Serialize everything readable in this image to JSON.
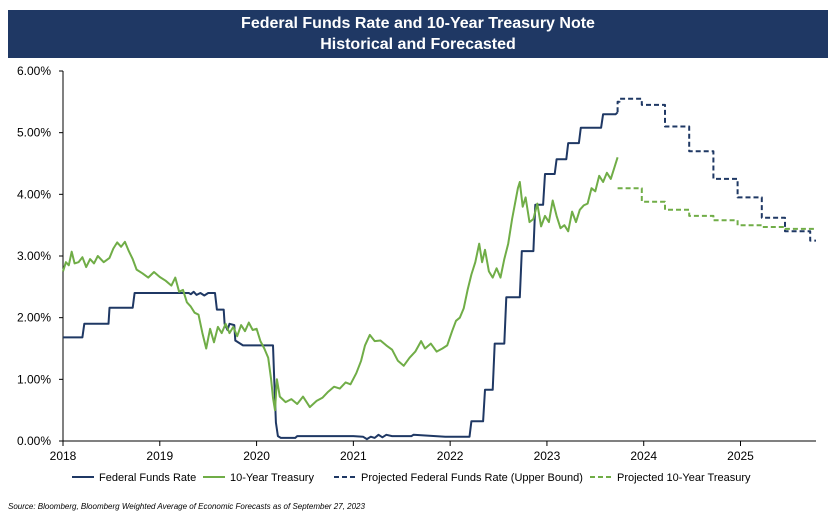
{
  "chart_data": {
    "type": "line",
    "title": "Federal Funds Rate and 10-Year Treasury Note",
    "subtitle": "Historical and Forecasted",
    "xlabel": "",
    "ylabel": "",
    "xlim": [
      2018,
      2025.78
    ],
    "ylim": [
      0,
      6
    ],
    "x_ticks": [
      "2018",
      "2019",
      "2020",
      "2021",
      "2022",
      "2023",
      "2024",
      "2025"
    ],
    "y_ticks": [
      "0.00%",
      "1.00%",
      "2.00%",
      "3.00%",
      "4.00%",
      "5.00%",
      "6.00%"
    ],
    "grid": false,
    "legend_position": "bottom",
    "colors": {
      "fed_funds": "#1f3864",
      "treasury": "#70ad47",
      "title_bg": "#1f3864"
    },
    "series": [
      {
        "name": "Federal Funds Rate",
        "style": "solid",
        "color": "#1f3864",
        "points": [
          [
            2018.0,
            1.68
          ],
          [
            2018.2,
            1.68
          ],
          [
            2018.22,
            1.9
          ],
          [
            2018.47,
            1.9
          ],
          [
            2018.48,
            2.16
          ],
          [
            2018.72,
            2.16
          ],
          [
            2018.74,
            2.4
          ],
          [
            2019.3,
            2.4
          ],
          [
            2019.32,
            2.38
          ],
          [
            2019.35,
            2.42
          ],
          [
            2019.38,
            2.37
          ],
          [
            2019.42,
            2.4
          ],
          [
            2019.46,
            2.36
          ],
          [
            2019.5,
            2.4
          ],
          [
            2019.57,
            2.4
          ],
          [
            2019.59,
            2.13
          ],
          [
            2019.66,
            2.13
          ],
          [
            2019.67,
            1.9
          ],
          [
            2019.7,
            1.8
          ],
          [
            2019.72,
            1.9
          ],
          [
            2019.77,
            1.88
          ],
          [
            2019.78,
            1.63
          ],
          [
            2019.86,
            1.55
          ],
          [
            2020.17,
            1.55
          ],
          [
            2020.18,
            1.1
          ],
          [
            2020.2,
            0.3
          ],
          [
            2020.22,
            0.08
          ],
          [
            2020.25,
            0.05
          ],
          [
            2020.4,
            0.05
          ],
          [
            2020.42,
            0.08
          ],
          [
            2021.0,
            0.08
          ],
          [
            2021.1,
            0.07
          ],
          [
            2021.14,
            0.03
          ],
          [
            2021.18,
            0.07
          ],
          [
            2021.22,
            0.05
          ],
          [
            2021.26,
            0.1
          ],
          [
            2021.3,
            0.06
          ],
          [
            2021.34,
            0.1
          ],
          [
            2021.4,
            0.08
          ],
          [
            2021.6,
            0.08
          ],
          [
            2021.62,
            0.1
          ],
          [
            2021.95,
            0.07
          ],
          [
            2022.2,
            0.07
          ],
          [
            2022.22,
            0.32
          ],
          [
            2022.34,
            0.32
          ],
          [
            2022.36,
            0.83
          ],
          [
            2022.44,
            0.83
          ],
          [
            2022.46,
            1.58
          ],
          [
            2022.56,
            1.58
          ],
          [
            2022.58,
            2.33
          ],
          [
            2022.72,
            2.33
          ],
          [
            2022.74,
            3.08
          ],
          [
            2022.86,
            3.08
          ],
          [
            2022.88,
            3.83
          ],
          [
            2022.96,
            3.83
          ],
          [
            2022.98,
            4.33
          ],
          [
            2023.08,
            4.33
          ],
          [
            2023.1,
            4.57
          ],
          [
            2023.2,
            4.57
          ],
          [
            2023.22,
            4.83
          ],
          [
            2023.33,
            4.83
          ],
          [
            2023.35,
            5.08
          ],
          [
            2023.56,
            5.08
          ],
          [
            2023.58,
            5.3
          ],
          [
            2023.71,
            5.3
          ],
          [
            2023.73,
            5.33
          ]
        ]
      },
      {
        "name": "10-Year Treasury",
        "style": "solid",
        "color": "#70ad47",
        "points": [
          [
            2018.0,
            2.75
          ],
          [
            2018.03,
            2.9
          ],
          [
            2018.06,
            2.85
          ],
          [
            2018.09,
            3.07
          ],
          [
            2018.12,
            2.88
          ],
          [
            2018.16,
            2.9
          ],
          [
            2018.2,
            2.98
          ],
          [
            2018.24,
            2.82
          ],
          [
            2018.28,
            2.95
          ],
          [
            2018.32,
            2.88
          ],
          [
            2018.36,
            3.0
          ],
          [
            2018.42,
            2.9
          ],
          [
            2018.48,
            2.97
          ],
          [
            2018.52,
            3.12
          ],
          [
            2018.56,
            3.22
          ],
          [
            2018.6,
            3.15
          ],
          [
            2018.64,
            3.23
          ],
          [
            2018.68,
            3.08
          ],
          [
            2018.72,
            2.95
          ],
          [
            2018.76,
            2.78
          ],
          [
            2018.82,
            2.72
          ],
          [
            2018.88,
            2.65
          ],
          [
            2018.94,
            2.74
          ],
          [
            2019.0,
            2.66
          ],
          [
            2019.06,
            2.6
          ],
          [
            2019.12,
            2.52
          ],
          [
            2019.16,
            2.65
          ],
          [
            2019.2,
            2.42
          ],
          [
            2019.24,
            2.45
          ],
          [
            2019.28,
            2.25
          ],
          [
            2019.32,
            2.18
          ],
          [
            2019.36,
            2.08
          ],
          [
            2019.4,
            2.05
          ],
          [
            2019.44,
            1.75
          ],
          [
            2019.48,
            1.5
          ],
          [
            2019.52,
            1.82
          ],
          [
            2019.56,
            1.6
          ],
          [
            2019.6,
            1.85
          ],
          [
            2019.64,
            1.75
          ],
          [
            2019.68,
            1.9
          ],
          [
            2019.72,
            1.75
          ],
          [
            2019.76,
            1.85
          ],
          [
            2019.8,
            1.7
          ],
          [
            2019.84,
            1.88
          ],
          [
            2019.88,
            1.78
          ],
          [
            2019.92,
            1.92
          ],
          [
            2019.96,
            1.8
          ],
          [
            2020.0,
            1.82
          ],
          [
            2020.04,
            1.62
          ],
          [
            2020.08,
            1.5
          ],
          [
            2020.12,
            1.35
          ],
          [
            2020.15,
            1.0
          ],
          [
            2020.17,
            0.7
          ],
          [
            2020.19,
            0.5
          ],
          [
            2020.21,
            1.0
          ],
          [
            2020.24,
            0.72
          ],
          [
            2020.3,
            0.63
          ],
          [
            2020.36,
            0.68
          ],
          [
            2020.42,
            0.6
          ],
          [
            2020.48,
            0.72
          ],
          [
            2020.55,
            0.55
          ],
          [
            2020.62,
            0.65
          ],
          [
            2020.68,
            0.7
          ],
          [
            2020.74,
            0.8
          ],
          [
            2020.8,
            0.88
          ],
          [
            2020.86,
            0.85
          ],
          [
            2020.92,
            0.95
          ],
          [
            2020.97,
            0.92
          ],
          [
            2021.03,
            1.1
          ],
          [
            2021.08,
            1.3
          ],
          [
            2021.12,
            1.55
          ],
          [
            2021.17,
            1.72
          ],
          [
            2021.22,
            1.62
          ],
          [
            2021.28,
            1.63
          ],
          [
            2021.34,
            1.55
          ],
          [
            2021.4,
            1.48
          ],
          [
            2021.46,
            1.3
          ],
          [
            2021.52,
            1.22
          ],
          [
            2021.58,
            1.35
          ],
          [
            2021.64,
            1.45
          ],
          [
            2021.7,
            1.62
          ],
          [
            2021.74,
            1.5
          ],
          [
            2021.8,
            1.58
          ],
          [
            2021.86,
            1.45
          ],
          [
            2021.92,
            1.5
          ],
          [
            2021.97,
            1.55
          ],
          [
            2022.02,
            1.78
          ],
          [
            2022.06,
            1.95
          ],
          [
            2022.1,
            2.0
          ],
          [
            2022.14,
            2.15
          ],
          [
            2022.18,
            2.45
          ],
          [
            2022.22,
            2.7
          ],
          [
            2022.26,
            2.9
          ],
          [
            2022.3,
            3.2
          ],
          [
            2022.33,
            2.9
          ],
          [
            2022.36,
            3.1
          ],
          [
            2022.4,
            2.75
          ],
          [
            2022.44,
            2.65
          ],
          [
            2022.48,
            2.8
          ],
          [
            2022.52,
            2.65
          ],
          [
            2022.56,
            2.95
          ],
          [
            2022.6,
            3.2
          ],
          [
            2022.64,
            3.6
          ],
          [
            2022.67,
            3.85
          ],
          [
            2022.7,
            4.1
          ],
          [
            2022.72,
            4.2
          ],
          [
            2022.75,
            3.8
          ],
          [
            2022.78,
            3.95
          ],
          [
            2022.82,
            3.55
          ],
          [
            2022.86,
            3.6
          ],
          [
            2022.9,
            3.85
          ],
          [
            2022.94,
            3.48
          ],
          [
            2022.98,
            3.65
          ],
          [
            2023.02,
            3.55
          ],
          [
            2023.06,
            3.9
          ],
          [
            2023.1,
            3.65
          ],
          [
            2023.14,
            3.45
          ],
          [
            2023.18,
            3.5
          ],
          [
            2023.22,
            3.4
          ],
          [
            2023.26,
            3.72
          ],
          [
            2023.3,
            3.55
          ],
          [
            2023.34,
            3.75
          ],
          [
            2023.38,
            3.82
          ],
          [
            2023.42,
            3.85
          ],
          [
            2023.46,
            4.1
          ],
          [
            2023.5,
            4.05
          ],
          [
            2023.54,
            4.3
          ],
          [
            2023.58,
            4.2
          ],
          [
            2023.62,
            4.35
          ],
          [
            2023.66,
            4.25
          ],
          [
            2023.7,
            4.45
          ],
          [
            2023.73,
            4.6
          ]
        ]
      },
      {
        "name": "Projected Federal Funds Rate (Upper Bound)",
        "style": "dashed",
        "color": "#1f3864",
        "points": [
          [
            2023.73,
            5.33
          ],
          [
            2023.73,
            5.5
          ],
          [
            2023.75,
            5.5
          ],
          [
            2023.75,
            5.55
          ],
          [
            2023.98,
            5.55
          ],
          [
            2023.98,
            5.45
          ],
          [
            2023.98,
            5.45
          ],
          [
            2024.22,
            5.45
          ],
          [
            2024.22,
            5.1
          ],
          [
            2024.47,
            5.1
          ],
          [
            2024.47,
            4.7
          ],
          [
            2024.72,
            4.7
          ],
          [
            2024.72,
            4.25
          ],
          [
            2024.97,
            4.25
          ],
          [
            2024.97,
            3.95
          ],
          [
            2025.22,
            3.95
          ],
          [
            2025.22,
            3.62
          ],
          [
            2025.46,
            3.62
          ],
          [
            2025.46,
            3.4
          ],
          [
            2025.72,
            3.4
          ],
          [
            2025.72,
            3.25
          ],
          [
            2025.78,
            3.25
          ]
        ]
      },
      {
        "name": "Projected 10-Year Treasury",
        "style": "dashed",
        "color": "#70ad47",
        "points": [
          [
            2023.73,
            4.1
          ],
          [
            2023.98,
            4.1
          ],
          [
            2023.98,
            3.88
          ],
          [
            2024.22,
            3.88
          ],
          [
            2024.22,
            3.75
          ],
          [
            2024.47,
            3.75
          ],
          [
            2024.47,
            3.65
          ],
          [
            2024.72,
            3.65
          ],
          [
            2024.72,
            3.58
          ],
          [
            2024.97,
            3.58
          ],
          [
            2024.97,
            3.5
          ],
          [
            2025.22,
            3.5
          ],
          [
            2025.22,
            3.47
          ],
          [
            2025.46,
            3.47
          ],
          [
            2025.46,
            3.44
          ],
          [
            2025.78,
            3.44
          ]
        ]
      }
    ]
  },
  "source": "Source: Bloomberg, Bloomberg Weighted Average of Economic Forecasts as of September 27, 2023"
}
